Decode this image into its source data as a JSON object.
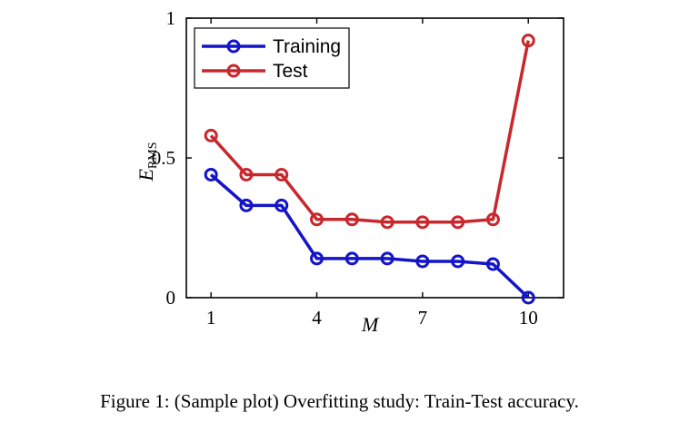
{
  "chart_data": {
    "type": "line",
    "x": [
      1,
      2,
      3,
      4,
      5,
      6,
      7,
      8,
      9,
      10
    ],
    "series": [
      {
        "name": "Training",
        "color": "#1414c8",
        "values": [
          0.44,
          0.33,
          0.33,
          0.14,
          0.14,
          0.14,
          0.13,
          0.13,
          0.12,
          0.0
        ]
      },
      {
        "name": "Test",
        "color": "#c8282d",
        "values": [
          0.58,
          0.44,
          0.44,
          0.28,
          0.28,
          0.27,
          0.27,
          0.27,
          0.28,
          0.92
        ]
      }
    ],
    "xticks": [
      1,
      4,
      7,
      10
    ],
    "yticks": [
      0,
      0.5,
      1
    ],
    "xlabel": "M",
    "ylabel": "E",
    "ylabel_sub": "RMS",
    "xlim": [
      0.3,
      11.0
    ],
    "ylim": [
      0,
      1
    ],
    "legend_position": "top-left",
    "grid": false
  },
  "caption": "Figure 1: (Sample plot) Overfitting study: Train-Test accuracy."
}
